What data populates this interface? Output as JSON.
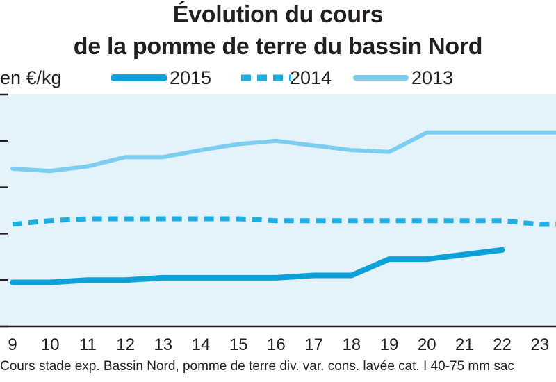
{
  "title_line1": "Évolution du cours",
  "title_line2": "de la pomme de terre du bassin Nord",
  "unit_label": "en €/kg",
  "footnote": "Cours stade exp. Bassin Nord, pomme de terre div. var. cons. lavée cat. I 40-75 mm sac",
  "colors": {
    "background": "#e3f2fb",
    "series_2015": "#0ea0d8",
    "series_2014": "#1eaee2",
    "series_2013": "#7dcdf1",
    "axis": "#231f20"
  },
  "chart_data": {
    "type": "line",
    "title": "Évolution du cours de la pomme de terre du bassin Nord",
    "ylabel": "en €/kg",
    "xlabel": "",
    "x": [
      9,
      10,
      11,
      12,
      13,
      14,
      15,
      16,
      17,
      18,
      19,
      20,
      21,
      22,
      23
    ],
    "xlim": [
      9,
      23.5
    ],
    "ylim": [
      0,
      0.5
    ],
    "y_ticks": [
      0,
      0.1,
      0.2,
      0.3,
      0.4,
      0.5
    ],
    "grid": false,
    "legend_position": "top",
    "series": [
      {
        "name": "2015",
        "style": "solid-thick",
        "points": [
          [
            9,
            0.095
          ],
          [
            10,
            0.095
          ],
          [
            11,
            0.1
          ],
          [
            12,
            0.1
          ],
          [
            13,
            0.105
          ],
          [
            14,
            0.105
          ],
          [
            15,
            0.105
          ],
          [
            16,
            0.105
          ],
          [
            17,
            0.11
          ],
          [
            18,
            0.11
          ],
          [
            19,
            0.145
          ],
          [
            20,
            0.145
          ],
          [
            21,
            0.155
          ],
          [
            22,
            0.165
          ]
        ]
      },
      {
        "name": "2014",
        "style": "dashed",
        "points": [
          [
            9,
            0.22
          ],
          [
            10,
            0.228
          ],
          [
            11,
            0.232
          ],
          [
            12,
            0.232
          ],
          [
            13,
            0.232
          ],
          [
            14,
            0.232
          ],
          [
            15,
            0.232
          ],
          [
            16,
            0.228
          ],
          [
            17,
            0.228
          ],
          [
            18,
            0.228
          ],
          [
            19,
            0.228
          ],
          [
            20,
            0.228
          ],
          [
            21,
            0.228
          ],
          [
            22,
            0.228
          ],
          [
            23,
            0.22
          ],
          [
            23.5,
            0.22
          ]
        ]
      },
      {
        "name": "2013",
        "style": "solid",
        "points": [
          [
            9,
            0.34
          ],
          [
            10,
            0.335
          ],
          [
            11,
            0.345
          ],
          [
            12,
            0.365
          ],
          [
            13,
            0.365
          ],
          [
            14,
            0.38
          ],
          [
            15,
            0.393
          ],
          [
            16,
            0.4
          ],
          [
            17,
            0.39
          ],
          [
            18,
            0.38
          ],
          [
            19,
            0.376
          ],
          [
            20,
            0.418
          ],
          [
            21,
            0.418
          ],
          [
            22,
            0.418
          ],
          [
            23,
            0.418
          ],
          [
            23.5,
            0.418
          ]
        ]
      }
    ]
  }
}
